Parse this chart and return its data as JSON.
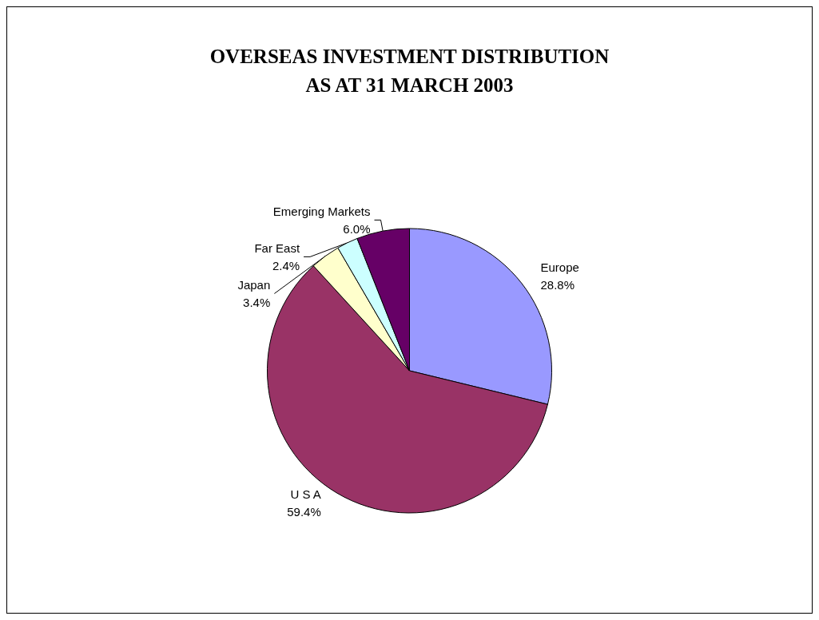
{
  "chart_data": {
    "type": "pie",
    "title": "OVERSEAS INVESTMENT DISTRIBUTION\nAS AT 31 MARCH 2003",
    "categories": [
      "Europe",
      "U S A",
      "Japan",
      "Far East",
      "Emerging Markets"
    ],
    "values": [
      28.8,
      59.4,
      3.4,
      2.4,
      6.0
    ],
    "value_labels": [
      "28.8%",
      "59.4%",
      "3.4%",
      "2.4%",
      "6.0%"
    ],
    "colors": [
      "#9999ff",
      "#993366",
      "#ffffcc",
      "#ccffff",
      "#660066"
    ],
    "legend": false
  }
}
